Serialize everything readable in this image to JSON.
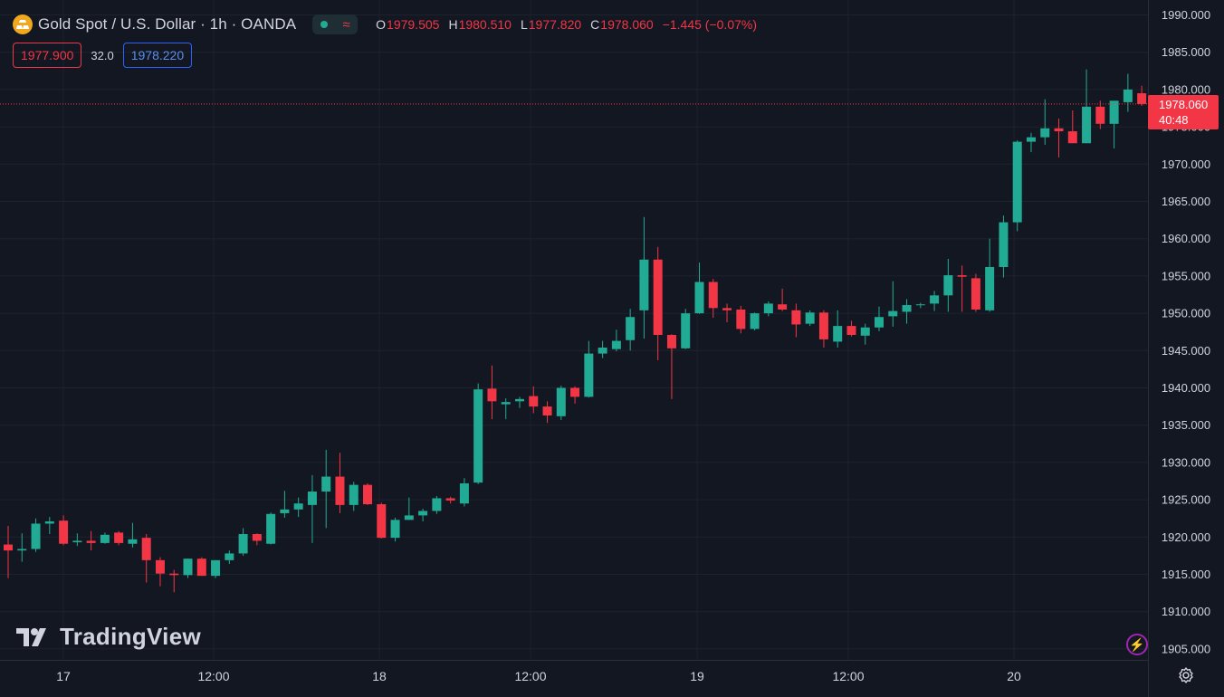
{
  "header": {
    "title": "Gold Spot / U.S. Dollar · 1h · OANDA",
    "ohlc": [
      {
        "k": "O",
        "v": "1979.505"
      },
      {
        "k": "H",
        "v": "1980.510"
      },
      {
        "k": "L",
        "v": "1977.820"
      },
      {
        "k": "C",
        "v": "1978.060"
      }
    ],
    "change": "−1.445 (−0.07%)",
    "sell_price": "1977.900",
    "spread": "32.0",
    "buy_price": "1978.220"
  },
  "last_price": {
    "price": "1978.060",
    "countdown": "40:48"
  },
  "watermark": "TradingView",
  "colors": {
    "up": "#22ab94",
    "down": "#f23645",
    "background": "#131722",
    "grid": "#1e222d",
    "text": "#d1d4dc"
  },
  "icons": [
    "gold-logo-icon",
    "market-status-dot-icon",
    "wave-icon",
    "tradingview-logo-icon",
    "flash-icon",
    "settings-gear-icon"
  ],
  "chart_data": {
    "type": "candlestick",
    "title": "Gold Spot / U.S. Dollar · 1h · OANDA",
    "x_ticks": [
      "17",
      "12:00",
      "18",
      "12:00",
      "19",
      "12:00",
      "20"
    ],
    "y_ticks": [
      "1990.000",
      "1985.000",
      "1980.000",
      "1975.000",
      "1970.000",
      "1965.000",
      "1960.000",
      "1955.000",
      "1950.000",
      "1945.000",
      "1940.000",
      "1935.000",
      "1930.000",
      "1925.000",
      "1920.000",
      "1915.000",
      "1910.000",
      "1905.000"
    ],
    "ylim": [
      1903.5,
      1991.5
    ],
    "grid": true,
    "candles": [
      {
        "o": 1919,
        "h": 1921.5,
        "l": 1914.5,
        "c": 1918.2
      },
      {
        "o": 1918.2,
        "h": 1920.5,
        "l": 1916.7,
        "c": 1918.4
      },
      {
        "o": 1918.4,
        "h": 1922.5,
        "l": 1918,
        "c": 1921.8
      },
      {
        "o": 1921.8,
        "h": 1922.7,
        "l": 1920.4,
        "c": 1922.1
      },
      {
        "o": 1922.2,
        "h": 1922.9,
        "l": 1918.9,
        "c": 1919.1
      },
      {
        "o": 1919.3,
        "h": 1920.5,
        "l": 1918.8,
        "c": 1919.5
      },
      {
        "o": 1919.5,
        "h": 1920.8,
        "l": 1918.2,
        "c": 1919.2
      },
      {
        "o": 1919.2,
        "h": 1920.6,
        "l": 1919.1,
        "c": 1920.3
      },
      {
        "o": 1920.6,
        "h": 1920.8,
        "l": 1918.9,
        "c": 1919.2
      },
      {
        "o": 1919.1,
        "h": 1921.9,
        "l": 1918.6,
        "c": 1919.7
      },
      {
        "o": 1919.9,
        "h": 1920.4,
        "l": 1913.9,
        "c": 1916.9
      },
      {
        "o": 1916.9,
        "h": 1917.3,
        "l": 1913.4,
        "c": 1915.1
      },
      {
        "o": 1915.1,
        "h": 1915.6,
        "l": 1912.6,
        "c": 1914.9
      },
      {
        "o": 1914.9,
        "h": 1917.1,
        "l": 1914.5,
        "c": 1917.1
      },
      {
        "o": 1917.1,
        "h": 1917.3,
        "l": 1914.8,
        "c": 1914.8
      },
      {
        "o": 1914.8,
        "h": 1916.9,
        "l": 1914.5,
        "c": 1916.9
      },
      {
        "o": 1916.9,
        "h": 1918.2,
        "l": 1916.4,
        "c": 1917.8
      },
      {
        "o": 1917.8,
        "h": 1921.2,
        "l": 1917.5,
        "c": 1920.4
      },
      {
        "o": 1920.4,
        "h": 1920.5,
        "l": 1918.9,
        "c": 1919.5
      },
      {
        "o": 1919.1,
        "h": 1923.3,
        "l": 1919,
        "c": 1923.1
      },
      {
        "o": 1923.2,
        "h": 1926.2,
        "l": 1922.6,
        "c": 1923.7
      },
      {
        "o": 1923.7,
        "h": 1925.3,
        "l": 1922.7,
        "c": 1924.5
      },
      {
        "o": 1924.3,
        "h": 1928.3,
        "l": 1919.2,
        "c": 1926.1
      },
      {
        "o": 1926.1,
        "h": 1931.7,
        "l": 1921.2,
        "c": 1928.1
      },
      {
        "o": 1928.1,
        "h": 1931.3,
        "l": 1923.2,
        "c": 1924.3
      },
      {
        "o": 1924.3,
        "h": 1927.4,
        "l": 1923.5,
        "c": 1927
      },
      {
        "o": 1927,
        "h": 1927.2,
        "l": 1924.3,
        "c": 1924.4
      },
      {
        "o": 1924.4,
        "h": 1924.6,
        "l": 1919.8,
        "c": 1919.9
      },
      {
        "o": 1919.9,
        "h": 1922.6,
        "l": 1919.4,
        "c": 1922.3
      },
      {
        "o": 1922.3,
        "h": 1925.3,
        "l": 1922.3,
        "c": 1922.9
      },
      {
        "o": 1922.9,
        "h": 1923.8,
        "l": 1922.1,
        "c": 1923.5
      },
      {
        "o": 1923.5,
        "h": 1925.5,
        "l": 1923.1,
        "c": 1925.2
      },
      {
        "o": 1925.2,
        "h": 1925.4,
        "l": 1924.5,
        "c": 1924.9
      },
      {
        "o": 1924.5,
        "h": 1927.9,
        "l": 1924.1,
        "c": 1927.2
      },
      {
        "o": 1927.3,
        "h": 1940.6,
        "l": 1927.1,
        "c": 1939.8
      },
      {
        "o": 1939.9,
        "h": 1943.0,
        "l": 1935.8,
        "c": 1938.2
      },
      {
        "o": 1937.8,
        "h": 1938.6,
        "l": 1935.8,
        "c": 1938.1
      },
      {
        "o": 1938.2,
        "h": 1938.8,
        "l": 1937.3,
        "c": 1938.5
      },
      {
        "o": 1938.9,
        "h": 1940.2,
        "l": 1936.6,
        "c": 1937.5
      },
      {
        "o": 1937.5,
        "h": 1938.2,
        "l": 1935.3,
        "c": 1936.3
      },
      {
        "o": 1936.2,
        "h": 1940.3,
        "l": 1935.7,
        "c": 1940.0
      },
      {
        "o": 1940,
        "h": 1940.2,
        "l": 1937.9,
        "c": 1938.8
      },
      {
        "o": 1938.8,
        "h": 1946.3,
        "l": 1938.7,
        "c": 1944.6
      },
      {
        "o": 1944.6,
        "h": 1946.3,
        "l": 1944,
        "c": 1945.4
      },
      {
        "o": 1945.2,
        "h": 1947.8,
        "l": 1944.9,
        "c": 1946.3
      },
      {
        "o": 1946.4,
        "h": 1950.6,
        "l": 1945,
        "c": 1949.5
      },
      {
        "o": 1950.4,
        "h": 1962.9,
        "l": 1946.6,
        "c": 1957.2
      },
      {
        "o": 1957.2,
        "h": 1958.9,
        "l": 1943.7,
        "c": 1947.1
      },
      {
        "o": 1947.1,
        "h": 1947.2,
        "l": 1938.5,
        "c": 1945.3
      },
      {
        "o": 1945.3,
        "h": 1950.6,
        "l": 1945.2,
        "c": 1950
      },
      {
        "o": 1950,
        "h": 1956.8,
        "l": 1949.9,
        "c": 1954.2
      },
      {
        "o": 1954.2,
        "h": 1954.6,
        "l": 1949.4,
        "c": 1950.7
      },
      {
        "o": 1950.7,
        "h": 1951.3,
        "l": 1948.8,
        "c": 1950.4
      },
      {
        "o": 1950.5,
        "h": 1951.0,
        "l": 1947.3,
        "c": 1947.9
      },
      {
        "o": 1947.9,
        "h": 1950.1,
        "l": 1947.7,
        "c": 1950
      },
      {
        "o": 1950.0,
        "h": 1951.6,
        "l": 1949.6,
        "c": 1951.3
      },
      {
        "o": 1951.2,
        "h": 1953.3,
        "l": 1950.3,
        "c": 1950.5
      },
      {
        "o": 1950.4,
        "h": 1951.3,
        "l": 1946.8,
        "c": 1948.5
      },
      {
        "o": 1948.6,
        "h": 1950.4,
        "l": 1948.3,
        "c": 1950.1
      },
      {
        "o": 1950.1,
        "h": 1950.4,
        "l": 1945.4,
        "c": 1946.5
      },
      {
        "o": 1946.2,
        "h": 1950.4,
        "l": 1945.4,
        "c": 1948.3
      },
      {
        "o": 1948.3,
        "h": 1949,
        "l": 1946.9,
        "c": 1947.1
      },
      {
        "o": 1947,
        "h": 1948.6,
        "l": 1945.8,
        "c": 1948.1
      },
      {
        "o": 1948.1,
        "h": 1950.9,
        "l": 1947.6,
        "c": 1949.5
      },
      {
        "o": 1949.6,
        "h": 1954.3,
        "l": 1948.2,
        "c": 1950.3
      },
      {
        "o": 1950.2,
        "h": 1951.9,
        "l": 1948.6,
        "c": 1951.1
      },
      {
        "o": 1951.1,
        "h": 1951.4,
        "l": 1950.7,
        "c": 1951.2
      },
      {
        "o": 1951.3,
        "h": 1953,
        "l": 1950.3,
        "c": 1952.4
      },
      {
        "o": 1952.4,
        "h": 1957.3,
        "l": 1950.2,
        "c": 1955.1
      },
      {
        "o": 1955.1,
        "h": 1956.4,
        "l": 1950.2,
        "c": 1954.9
      },
      {
        "o": 1954.7,
        "h": 1955.3,
        "l": 1950.2,
        "c": 1950.5
      },
      {
        "o": 1950.4,
        "h": 1960.0,
        "l": 1950.2,
        "c": 1956.2
      },
      {
        "o": 1956.2,
        "h": 1963.1,
        "l": 1954.8,
        "c": 1962.2
      },
      {
        "o": 1962.2,
        "h": 1973.2,
        "l": 1961,
        "c": 1973.0
      },
      {
        "o": 1973,
        "h": 1974.2,
        "l": 1971.6,
        "c": 1973.6
      },
      {
        "o": 1973.6,
        "h": 1978.7,
        "l": 1972.6,
        "c": 1974.8
      },
      {
        "o": 1974.8,
        "h": 1976.1,
        "l": 1970.9,
        "c": 1974.4
      },
      {
        "o": 1974.4,
        "h": 1977.2,
        "l": 1972.8,
        "c": 1972.8
      },
      {
        "o": 1972.8,
        "h": 1982.7,
        "l": 1972.8,
        "c": 1977.7
      },
      {
        "o": 1977.7,
        "h": 1978.5,
        "l": 1974.7,
        "c": 1975.4
      },
      {
        "o": 1975.4,
        "h": 1978.3,
        "l": 1972.1,
        "c": 1978.5
      },
      {
        "o": 1978.3,
        "h": 1982.1,
        "l": 1977,
        "c": 1980.0
      },
      {
        "o": 1979.5,
        "h": 1980.5,
        "l": 1977.8,
        "c": 1978.06
      }
    ]
  }
}
